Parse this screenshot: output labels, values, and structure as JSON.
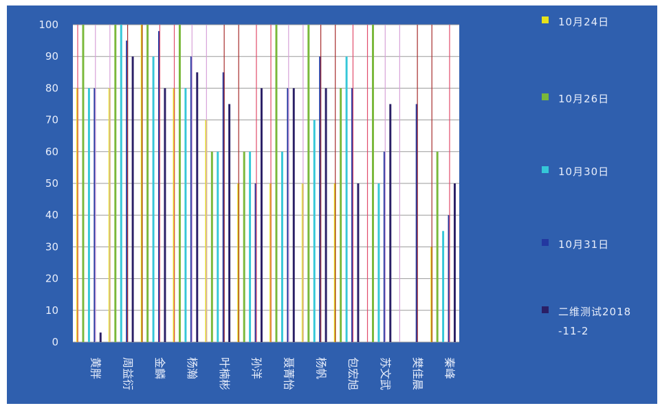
{
  "chart_data": {
    "type": "bar",
    "title": "",
    "xlabel": "",
    "ylabel": "",
    "ylim": [
      0,
      100
    ],
    "yticks": [
      0,
      10,
      20,
      30,
      40,
      50,
      60,
      70,
      80,
      90,
      100
    ],
    "grid": true,
    "legend_position": "right",
    "categories": [
      "黄胖",
      "周益衍",
      "金麟",
      "杨瀚",
      "叶楠彬",
      "孙洋",
      "聂菁怡",
      "杨帆",
      "包宏旭",
      "苏文武",
      "樊佳晨",
      "秦峰"
    ],
    "series": [
      {
        "name": "10月24日",
        "color": "#e6e21a",
        "values": [
          80,
          80,
          100,
          80,
          70,
          50,
          50,
          50,
          50,
          0,
          0,
          30
        ]
      },
      {
        "name": "10月26日",
        "color": "#79b83a",
        "values": [
          100,
          100,
          100,
          100,
          60,
          60,
          100,
          100,
          80,
          100,
          0,
          60
        ]
      },
      {
        "name": "10月30日",
        "color": "#35c7d8",
        "values": [
          80,
          100,
          90,
          80,
          60,
          60,
          60,
          70,
          90,
          50,
          0,
          35
        ]
      },
      {
        "name": "10月31日",
        "color": "#2338a0",
        "values": [
          80,
          95,
          98,
          90,
          85,
          50,
          80,
          90,
          80,
          60,
          75,
          40
        ]
      },
      {
        "name": "二维测试2018-11-2",
        "color": "#2a1f66",
        "values": [
          3,
          90,
          80,
          85,
          75,
          80,
          80,
          80,
          50,
          75,
          0,
          50
        ]
      }
    ]
  },
  "legend": [
    {
      "text": "10月24日",
      "color": "#e6e21a"
    },
    {
      "text": "10月26日",
      "color": "#79b83a"
    },
    {
      "text": "10月30日",
      "color": "#35c7d8"
    },
    {
      "text": "10月31日",
      "color": "#2338a0"
    },
    {
      "text": "二维测试2018-11-2",
      "color": "#2a1f66"
    }
  ]
}
